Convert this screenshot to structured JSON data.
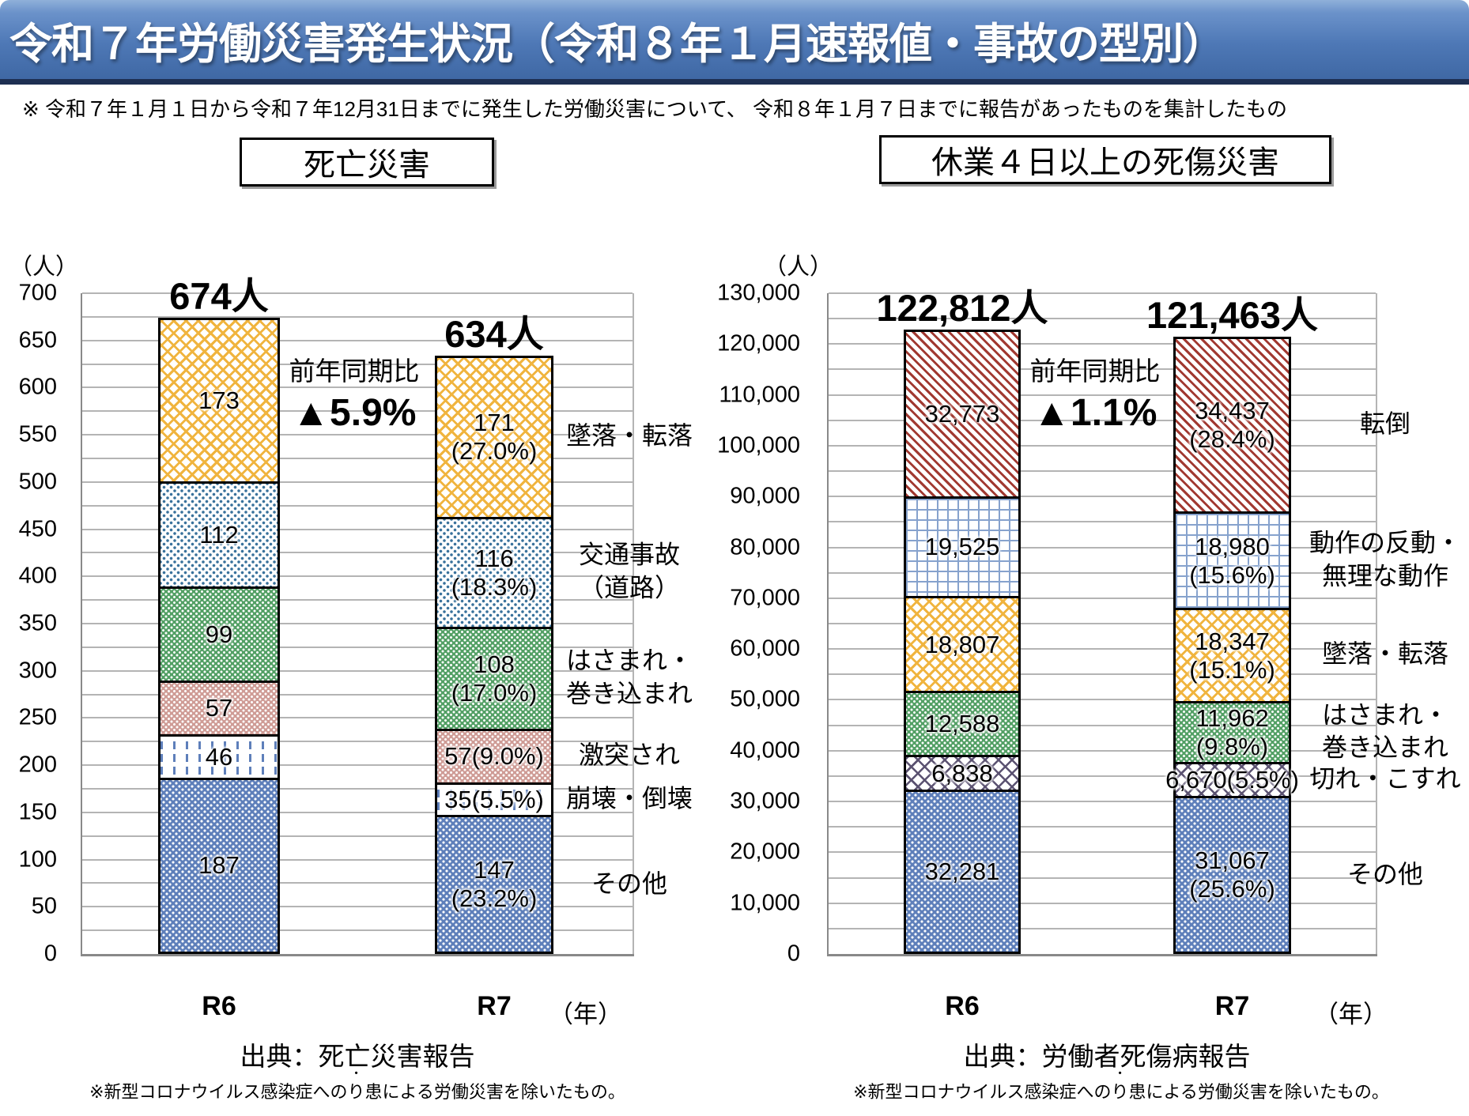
{
  "title": "令和７年労働災害発生状況（令和８年１月速報値・事故の型別）",
  "note": "※ 令和７年１月１日から令和７年12月31日までに発生した労働災害について、 令和８年１月７日までに報告があったものを集計したもの",
  "charts": [
    {
      "header": "死亡災害",
      "unit_label": "（人）",
      "year_label": "（年）",
      "comparison": {
        "label": "前年同期比",
        "value": "▲5.9%"
      },
      "source": "出典：死亡災害報告",
      "footnote": {
        "prefix": "※新型コロナウイルス感染症への",
        "emphasis": "り",
        "emphasis_mark": "・",
        "suffix": "患による労働災害を除いたもの。"
      }
    },
    {
      "header": "休業４日以上の死傷災害",
      "unit_label": "（人）",
      "year_label": "（年）",
      "comparison": {
        "label": "前年同期比",
        "value": "▲1.1%"
      },
      "source": "出典：労働者死傷病報告",
      "footnote": {
        "prefix": "※新型コロナウイルス感染症への",
        "emphasis": "り",
        "emphasis_mark": "・",
        "suffix": "患による労働災害を除いたもの。"
      }
    }
  ],
  "chart_data": [
    {
      "type": "bar",
      "stacked": true,
      "title": "死亡災害",
      "xlabel": "（年）",
      "ylabel": "（人）",
      "grid": true,
      "legend_position": "right",
      "categories": [
        "R6",
        "R7"
      ],
      "totals": [
        "674人",
        "634人"
      ],
      "total_values": [
        674,
        634
      ],
      "ylim": [
        0,
        700
      ],
      "ytick_major": 50,
      "ytick_minor": 25,
      "ytick_labels": [
        "0",
        "50",
        "100",
        "150",
        "200",
        "250",
        "300",
        "350",
        "400",
        "450",
        "500",
        "550",
        "600",
        "650",
        "700"
      ],
      "series": [
        {
          "name": "その他",
          "pattern": "blue-check",
          "values": [
            187,
            147
          ],
          "labels": [
            "187",
            "147\n(23.2%)"
          ],
          "legend": "その他"
        },
        {
          "name": "崩壊・倒壊",
          "pattern": "blue-dash",
          "values": [
            46,
            35
          ],
          "labels": [
            "46",
            "35(5.5%)"
          ],
          "legend": "崩壊・倒壊"
        },
        {
          "name": "激突され",
          "pattern": "pink-check",
          "values": [
            57,
            57
          ],
          "labels": [
            "57",
            "57(9.0%)"
          ],
          "legend": "激突され"
        },
        {
          "name": "はさまれ・巻き込まれ",
          "pattern": "green-check",
          "values": [
            99,
            108
          ],
          "labels": [
            "99",
            "108\n(17.0%)"
          ],
          "legend": "はさまれ・\n巻き込まれ"
        },
        {
          "name": "交通事故（道路）",
          "pattern": "blue-dot",
          "values": [
            112,
            116
          ],
          "labels": [
            "112",
            "116\n(18.3%)"
          ],
          "legend": "交通事故\n（道路）"
        },
        {
          "name": "墜落・転落",
          "pattern": "orange-hatch",
          "values": [
            173,
            171
          ],
          "labels": [
            "173",
            "171\n(27.0%)"
          ],
          "legend": "墜落・転落"
        }
      ]
    },
    {
      "type": "bar",
      "stacked": true,
      "title": "休業４日以上の死傷災害",
      "xlabel": "（年）",
      "ylabel": "（人）",
      "grid": true,
      "legend_position": "right",
      "categories": [
        "R6",
        "R7"
      ],
      "totals": [
        "122,812人",
        "121,463人"
      ],
      "total_values": [
        122812,
        121463
      ],
      "ylim": [
        0,
        130000
      ],
      "ytick_major": 10000,
      "ytick_minor": 5000,
      "ytick_labels": [
        "0",
        "10,000",
        "20,000",
        "30,000",
        "40,000",
        "50,000",
        "60,000",
        "70,000",
        "80,000",
        "90,000",
        "100,000",
        "110,000",
        "120,000",
        "130,000"
      ],
      "series": [
        {
          "name": "その他",
          "pattern": "blue-check",
          "values": [
            32281,
            31067
          ],
          "labels": [
            "32,281",
            "31,067\n(25.6%)"
          ],
          "legend": "その他"
        },
        {
          "name": "切れ・こすれ",
          "pattern": "purple-lattice",
          "values": [
            6838,
            6670
          ],
          "labels": [
            "6,838",
            "6,670(5.5%)"
          ],
          "legend": "切れ・こすれ"
        },
        {
          "name": "はさまれ・巻き込まれ",
          "pattern": "green-check",
          "values": [
            12588,
            11962
          ],
          "labels": [
            "12,588",
            "11,962\n(9.8%)"
          ],
          "legend": "はさまれ・\n巻き込まれ"
        },
        {
          "name": "墜落・転落",
          "pattern": "orange-hatch",
          "values": [
            18807,
            18347
          ],
          "labels": [
            "18,807",
            "18,347\n(15.1%)"
          ],
          "legend": "墜落・転落"
        },
        {
          "name": "動作の反動・無理な動作",
          "pattern": "blue-grid",
          "values": [
            19525,
            18980
          ],
          "labels": [
            "19,525",
            "18,980\n(15.6%)"
          ],
          "legend": "動作の反動・\n無理な動作"
        },
        {
          "name": "転倒",
          "pattern": "red-hatch",
          "values": [
            32773,
            34437
          ],
          "labels": [
            "32,773",
            "34,437\n(28.4%)"
          ],
          "legend": "転倒"
        }
      ]
    }
  ]
}
